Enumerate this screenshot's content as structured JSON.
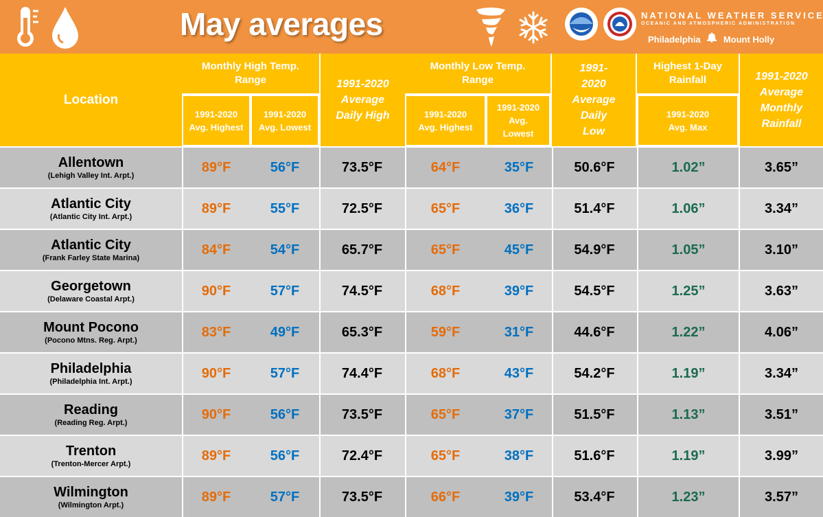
{
  "header": {
    "title": "May averages",
    "agency_name": "NATIONAL WEATHER SERVICE",
    "agency_parent": "OCEANIC AND ATMOSPHERIC ADMINISTRATION",
    "office_left": "Philadelphia",
    "office_right": "Mount Holly",
    "icons": [
      "thermometer-icon",
      "raindrop-icon",
      "tornado-icon",
      "snowflake-icon",
      "noaa-logo",
      "nws-logo",
      "liberty-bell-icon"
    ],
    "banner_color": "#f0923f"
  },
  "columns": {
    "location": "Location",
    "high_range": "Monthly High Temp. Range",
    "high_highest": "1991-2020 Avg. Highest",
    "high_lowest": "1991-2020 Avg. Lowest",
    "avg_daily_high": "1991-2020 Average Daily High",
    "low_range": "Monthly Low Temp. Range",
    "low_highest": "1991-2020 Avg. Highest",
    "low_lowest": "1991-2020 Avg. Lowest",
    "avg_daily_low": "1991-2020 Average Daily Low",
    "rain_1day": "Highest 1-Day Rainfall",
    "rain_1day_sub": "1991-2020 Avg. Max",
    "avg_monthly_rain": "1991-2020 Average Monthly Rainfall"
  },
  "colors": {
    "header_bg": "#ffc000",
    "row_dark": "#bfbfbf",
    "row_light": "#d9d9d9",
    "warm": "#e46c0a",
    "cool": "#0070c0",
    "rain": "#1b6b4d",
    "neutral": "#000000"
  },
  "rows": [
    {
      "name": "Allentown",
      "station": "(Lehigh Valley Int. Arpt.)",
      "high_highest": "89°F",
      "high_lowest": "56°F",
      "avg_high": "73.5°F",
      "low_highest": "64°F",
      "low_lowest": "35°F",
      "avg_low": "50.6°F",
      "rain_max": "1.02”",
      "rain_avg": "3.65”"
    },
    {
      "name": "Atlantic City",
      "station": "(Atlantic City Int. Arpt.)",
      "high_highest": "89°F",
      "high_lowest": "55°F",
      "avg_high": "72.5°F",
      "low_highest": "65°F",
      "low_lowest": "36°F",
      "avg_low": "51.4°F",
      "rain_max": "1.06”",
      "rain_avg": "3.34”"
    },
    {
      "name": "Atlantic City",
      "station": "(Frank Farley State Marina)",
      "high_highest": "84°F",
      "high_lowest": "54°F",
      "avg_high": "65.7°F",
      "low_highest": "65°F",
      "low_lowest": "45°F",
      "avg_low": "54.9°F",
      "rain_max": "1.05”",
      "rain_avg": "3.10”"
    },
    {
      "name": "Georgetown",
      "station": "(Delaware Coastal Arpt.)",
      "high_highest": "90°F",
      "high_lowest": "57°F",
      "avg_high": "74.5°F",
      "low_highest": "68°F",
      "low_lowest": "39°F",
      "avg_low": "54.5°F",
      "rain_max": "1.25”",
      "rain_avg": "3.63”"
    },
    {
      "name": "Mount Pocono",
      "station": "(Pocono Mtns. Reg. Arpt.)",
      "high_highest": "83°F",
      "high_lowest": "49°F",
      "avg_high": "65.3°F",
      "low_highest": "59°F",
      "low_lowest": "31°F",
      "avg_low": "44.6°F",
      "rain_max": "1.22”",
      "rain_avg": "4.06”"
    },
    {
      "name": "Philadelphia",
      "station": "(Philadelphia Int. Arpt.)",
      "high_highest": "90°F",
      "high_lowest": "57°F",
      "avg_high": "74.4°F",
      "low_highest": "68°F",
      "low_lowest": "43°F",
      "avg_low": "54.2°F",
      "rain_max": "1.19”",
      "rain_avg": "3.34”"
    },
    {
      "name": "Reading",
      "station": "(Reading Reg. Arpt.)",
      "high_highest": "90°F",
      "high_lowest": "56°F",
      "avg_high": "73.5°F",
      "low_highest": "65°F",
      "low_lowest": "37°F",
      "avg_low": "51.5°F",
      "rain_max": "1.13”",
      "rain_avg": "3.51”"
    },
    {
      "name": "Trenton",
      "station": "(Trenton-Mercer Arpt.)",
      "high_highest": "89°F",
      "high_lowest": "56°F",
      "avg_high": "72.4°F",
      "low_highest": "65°F",
      "low_lowest": "38°F",
      "avg_low": "51.6°F",
      "rain_max": "1.19”",
      "rain_avg": "3.99”"
    },
    {
      "name": "Wilmington",
      "station": "(Wilmington Arpt.)",
      "high_highest": "89°F",
      "high_lowest": "57°F",
      "avg_high": "73.5°F",
      "low_highest": "66°F",
      "low_lowest": "39°F",
      "avg_low": "53.4°F",
      "rain_max": "1.23”",
      "rain_avg": "3.57”"
    }
  ]
}
